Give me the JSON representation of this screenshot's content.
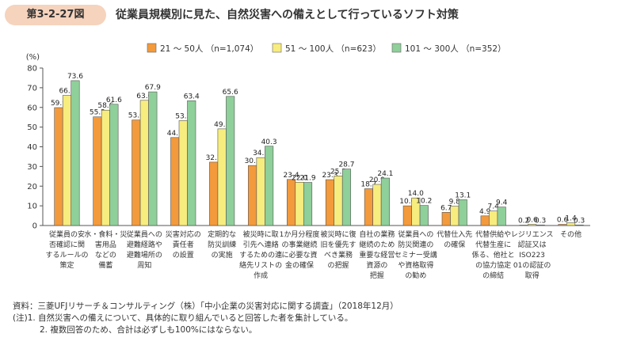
{
  "figure_label": "第3-2-27図",
  "title": "従業員規模別に見た、自然災害への備えとして行っているソフト対策",
  "notes": [
    "資料：三菱UFJリサーチ＆コンサルティング（株）「中小企業の災害対応に関する調査」（2018年12月）",
    "(注)1. 自然災害への備えについて、具体的に取り組んでいると回答した者を集計している。",
    "2. 複数回答のため、合計は必ずしも100%にはならない。"
  ],
  "chart_data": {
    "type": "bar",
    "unit_label": "(%)",
    "ylim": [
      0,
      80
    ],
    "yticks": [
      0,
      10,
      20,
      30,
      40,
      50,
      60,
      70,
      80
    ],
    "grid": false,
    "legend_position": "top",
    "colors": [
      "#f39a3c",
      "#f7ec7e",
      "#8fcf9a"
    ],
    "categories": [
      [
        "従業員の安",
        "否確認に関",
        "するルールの",
        "策定"
      ],
      [
        "水・食料・災",
        "害用品",
        "などの",
        "備蓄"
      ],
      [
        "従業員への",
        "避難経路や",
        "避難場所の",
        "周知"
      ],
      [
        "災害対応の",
        "責任者",
        "の設置"
      ],
      [
        "定期的な",
        "防災訓練",
        "の実施"
      ],
      [
        "被災時に取",
        "引先へ連絡",
        "するための連",
        "絡先リストの",
        "作成"
      ],
      [
        "1か月分程度",
        "の事業継続",
        "に必要な資",
        "金の確保"
      ],
      [
        "被災時に復",
        "旧を優先す",
        "べき業務",
        "の把握"
      ],
      [
        "自社の業務",
        "継続のため",
        "重要な経営",
        "資源の",
        "把握"
      ],
      [
        "従業員への",
        "防災関連の",
        "セミナー受講",
        "や資格取得",
        "の勧め"
      ],
      [
        "代替仕入先",
        "の確保"
      ],
      [
        "代替供給や",
        "代替生産に",
        "係る、他社と",
        "の協力協定",
        "の締結"
      ],
      [
        "レジリエンス",
        "認証又は",
        "ISO223",
        "01の認証の",
        "取得"
      ],
      [
        "その他"
      ]
    ],
    "series": [
      {
        "name": "21 ～ 50人 （n=1,074）",
        "values": [
          59.9,
          55.2,
          53.6,
          44.7,
          32.2,
          30.5,
          23.4,
          23.3,
          18.7,
          10.0,
          6.7,
          4.9,
          0.2,
          0.6
        ]
      },
      {
        "name": "51 ～ 100人 （n=623）",
        "values": [
          66.1,
          58.6,
          63.6,
          53.3,
          49.1,
          34.5,
          22.0,
          25.2,
          20.9,
          14.0,
          9.8,
          7.4,
          0.6,
          1.4
        ]
      },
      {
        "name": "101 ～ 300人 （n=352）",
        "values": [
          73.6,
          61.6,
          67.9,
          63.4,
          65.6,
          40.3,
          21.9,
          28.7,
          24.1,
          10.2,
          13.1,
          9.4,
          0.3,
          0.3
        ]
      }
    ]
  }
}
